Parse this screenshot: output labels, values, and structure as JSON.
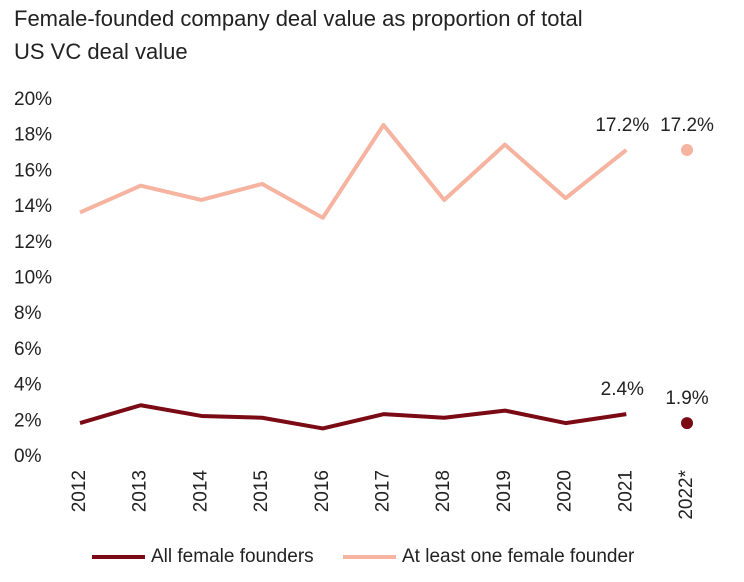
{
  "chart_data": {
    "type": "line",
    "title": [
      "Female-founded company deal value as proportion of total",
      "US VC deal value"
    ],
    "categories": [
      "2012",
      "2013",
      "2014",
      "2015",
      "2016",
      "2017",
      "2018",
      "2019",
      "2020",
      "2021",
      "2022*"
    ],
    "projected_last": true,
    "series": [
      {
        "name": "All female founders",
        "color": "#7a0a14",
        "values": [
          1.9,
          2.9,
          2.3,
          2.2,
          1.6,
          2.4,
          2.2,
          2.6,
          1.9,
          2.4,
          1.9
        ],
        "value_labels": [
          null,
          null,
          null,
          null,
          null,
          null,
          null,
          null,
          null,
          "2.4%",
          "1.9%"
        ]
      },
      {
        "name": "At least one female founder",
        "color": "#f6b3a0",
        "values": [
          13.7,
          15.2,
          14.4,
          15.3,
          13.4,
          18.6,
          14.4,
          17.5,
          14.5,
          17.2,
          17.2
        ],
        "value_labels": [
          null,
          null,
          null,
          null,
          null,
          null,
          null,
          null,
          null,
          "17.2%",
          "17.2%"
        ]
      }
    ],
    "ylim": [
      0,
      20
    ],
    "yticks": [
      {
        "value": 0,
        "label": "0%"
      },
      {
        "value": 2,
        "label": "2%"
      },
      {
        "value": 4,
        "label": "4%"
      },
      {
        "value": 6,
        "label": "6%"
      },
      {
        "value": 8,
        "label": "8%"
      },
      {
        "value": 10,
        "label": "10%"
      },
      {
        "value": 12,
        "label": "12%"
      },
      {
        "value": 14,
        "label": "14%"
      },
      {
        "value": 16,
        "label": "16%"
      },
      {
        "value": 18,
        "label": "18%"
      },
      {
        "value": 20,
        "label": "20%"
      }
    ],
    "grid": false
  }
}
